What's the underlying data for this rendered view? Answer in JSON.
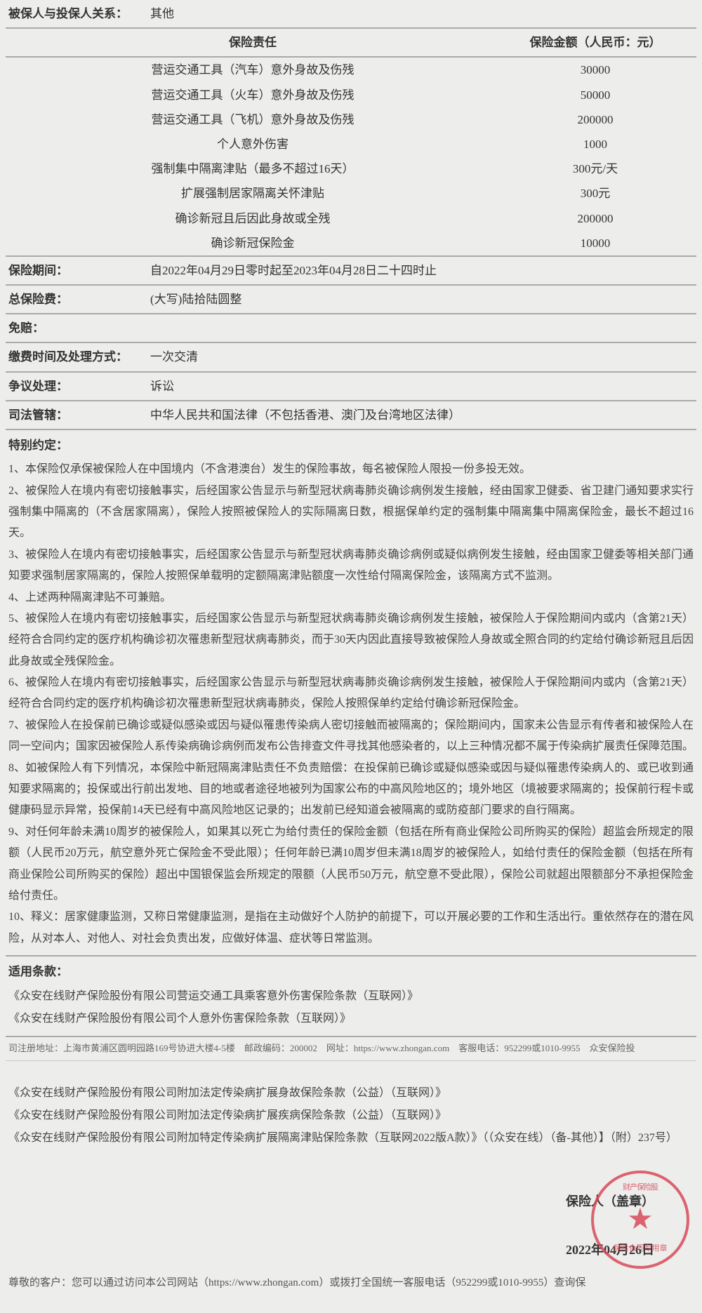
{
  "relationship": {
    "label": "被保人与投保人关系：",
    "value": "其他"
  },
  "coverage": {
    "header_left": "保险责任",
    "header_right": "保险金额（人民币：元）",
    "rows": [
      {
        "name": "营运交通工具（汽车）意外身故及伤残",
        "amount": "30000"
      },
      {
        "name": "营运交通工具（火车）意外身故及伤残",
        "amount": "50000"
      },
      {
        "name": "营运交通工具（飞机）意外身故及伤残",
        "amount": "200000"
      },
      {
        "name": "个人意外伤害",
        "amount": "1000"
      },
      {
        "name": "强制集中隔离津贴（最多不超过16天）",
        "amount": "300元/天"
      },
      {
        "name": "扩展强制居家隔离关怀津贴",
        "amount": "300元"
      },
      {
        "name": "确诊新冠且后因此身故或全残",
        "amount": "200000"
      },
      {
        "name": "确诊新冠保险金",
        "amount": "10000"
      }
    ]
  },
  "period": {
    "label": "保险期间：",
    "value": "自2022年04月29日零时起至2023年04月28日二十四时止"
  },
  "premium": {
    "label": "总保险费：",
    "value": "(大写)陆拾陆圆整"
  },
  "deductible": {
    "label": "免赔："
  },
  "payment": {
    "label": "缴费时间及处理方式：",
    "value": "一次交清"
  },
  "dispute": {
    "label": "争议处理：",
    "value": "诉讼"
  },
  "jurisdiction": {
    "label": "司法管辖：",
    "value": "中华人民共和国法律（不包括香港、澳门及台湾地区法律）"
  },
  "special": {
    "title": "特别约定：",
    "items": [
      "1、本保险仅承保被保险人在中国境内（不含港澳台）发生的保险事故，每名被保险人限投一份多投无效。",
      "2、被保险人在境内有密切接触事实，后经国家公告显示与新型冠状病毒肺炎确诊病例发生接触，经由国家卫健委、省卫建门通知要求实行强制集中隔离的（不含居家隔离），保险人按照被保险人的实际隔离日数，根据保单约定的强制集中隔离集中隔离保险金，最长不超过16天。",
      "3、被保险人在境内有密切接触事实，后经国家公告显示与新型冠状病毒肺炎确诊病例或疑似病例发生接触，经由国家卫健委等相关部门通知要求强制居家隔离的，保险人按照保单载明的定额隔离津贴额度一次性给付隔离保险金，该隔离方式不监测。",
      "4、上述两种隔离津贴不可兼赔。",
      "5、被保险人在境内有密切接触事实，后经国家公告显示与新型冠状病毒肺炎确诊病例发生接触，被保险人于保险期间内或内（含第21天）经符合合同约定的医疗机构确诊初次罹患新型冠状病毒肺炎，而于30天内因此直接导致被保险人身故或全照合同的约定给付确诊新冠且后因此身故或全残保险金。",
      "6、被保险人在境内有密切接触事实，后经国家公告显示与新型冠状病毒肺炎确诊病例发生接触，被保险人于保险期间内或内（含第21天）经符合合同约定的医疗机构确诊初次罹患新型冠状病毒肺炎，保险人按照保单约定给付确诊新冠保险金。",
      "7、被保险人在投保前已确诊或疑似感染或因与疑似罹患传染病人密切接触而被隔离的；保险期间内，国家未公告显示有传者和被保险人在同一空间内；国家因被保险人系传染病确诊病例而发布公告排查文件寻找其他感染者的，以上三种情况都不属于传染病扩展责任保障范围。",
      "8、如被保险人有下列情况，本保险中新冠隔离津贴责任不负责赔偿：在投保前已确诊或疑似感染或因与疑似罹患传染病人的、或已收到通知要求隔离的；投保或出行前出发地、目的地或者途径地被列为国家公布的中高风险地区的；境外地区（境被要求隔离的；投保前行程卡或健康码显示异常，投保前14天已经有中高风险地区记录的；出发前已经知道会被隔离的或防疫部门要求的自行隔离。",
      "9、对任何年龄未满10周岁的被保险人，如果其以死亡为给付责任的保险金额（包括在所有商业保险公司所购买的保险）超监会所规定的限额（人民币20万元，航空意外死亡保险金不受此限）；任何年龄已满10周岁但未满18周岁的被保险人，如给付责任的保险金额（包括在所有商业保险公司所购买的保险）超出中国银保监会所规定的限额（人民币50万元，航空意不受此限），保险公司就超出限额部分不承担保险金给付责任。",
      "10、释义：居家健康监测，又称日常健康监测，是指在主动做好个人防护的前提下，可以开展必要的工作和生活出行。重依然存在的潜在风险，从对本人、对他人、对社会负责出发，应做好体温、症状等日常监测。"
    ]
  },
  "applicable": {
    "title": "适用条款：",
    "clauses": [
      "《众安在线财产保险股份有限公司营运交通工具乘客意外伤害保险条款（互联网）》",
      "《众安在线财产保险股份有限公司个人意外伤害保险条款（互联网）》"
    ]
  },
  "company_footer": "司注册地址：上海市黄浦区圆明园路169号协进大楼4-5楼　邮政编码：200002　网址：https://www.zhongan.com　客服电话：952299或1010-9955　众安保险投",
  "addendum_clauses": [
    "《众安在线财产保险股份有限公司附加法定传染病扩展身故保险条款（公益）（互联网）》",
    "《众安在线财产保险股份有限公司附加法定传染病扩展疾病保险条款（公益）（互联网）》",
    "《众安在线财产保险股份有限公司附加特定传染病扩展隔离津贴保险条款（互联网2022版A款）》（（众安在线）（备-其他）】（附）237号）"
  ],
  "signature": {
    "label": "保险人（盖章）",
    "date": "2022年04月26日",
    "seal_top": "财产保险股",
    "seal_bottom": "保险合同专用章"
  },
  "bottom_note": "尊敬的客户：您可以通过访问本公司网站（https://www.zhongan.com）或拨打全国统一客服电话（952299或1010-9955）查询保"
}
